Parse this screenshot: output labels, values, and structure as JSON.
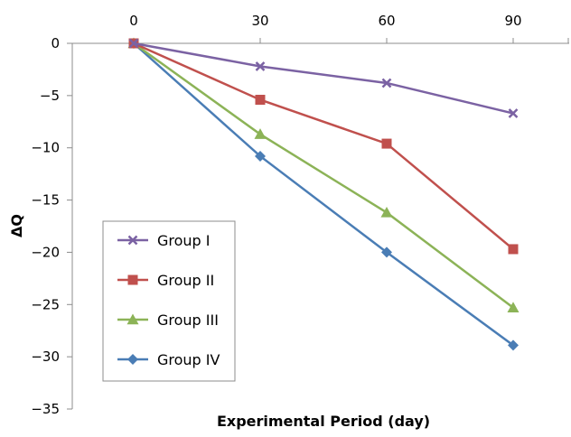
{
  "chart_data": {
    "type": "line",
    "xlabel": "Experimental Period (day)",
    "ylabel": "ΔQ",
    "x": [
      0,
      30,
      60,
      90
    ],
    "xlim": [
      0,
      90
    ],
    "ylim": [
      -35,
      0
    ],
    "yticks": [
      0,
      -5,
      -10,
      -15,
      -20,
      -25,
      -30,
      -35
    ],
    "x_axis_position": "top",
    "grid": false,
    "legend_position": "lower-left",
    "series": [
      {
        "name": "Group I",
        "values": [
          0,
          -2.2,
          -3.8,
          -6.7
        ],
        "color": "#7b62a3",
        "marker": "x"
      },
      {
        "name": "Group II",
        "values": [
          0,
          -5.4,
          -9.6,
          -19.7
        ],
        "color": "#c0504d",
        "marker": "square"
      },
      {
        "name": "Group III",
        "values": [
          0,
          -8.7,
          -16.2,
          -25.3
        ],
        "color": "#8cb357",
        "marker": "triangle"
      },
      {
        "name": "Group IV",
        "values": [
          0,
          -10.8,
          -20.0,
          -28.9
        ],
        "color": "#4a7db5",
        "marker": "diamond"
      }
    ]
  }
}
